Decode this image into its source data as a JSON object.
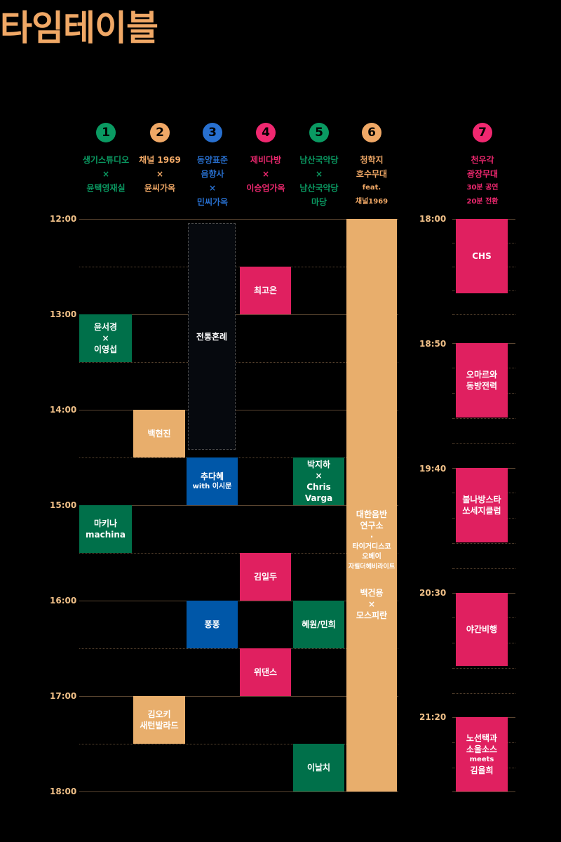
{
  "title": "타임테이블",
  "colors": {
    "green": "#00704a",
    "orange": "#e8ae6c",
    "blue": "#0057a8",
    "pink": "#e02060",
    "title": "#f0a866"
  },
  "venues": [
    {
      "num": "1",
      "lines": [
        "생기스튜디오",
        "×",
        "윤택영재실"
      ],
      "color": "#0a9a62"
    },
    {
      "num": "2",
      "lines": [
        "채널 1969",
        "×",
        "윤씨가옥"
      ],
      "color": "#f0a866"
    },
    {
      "num": "3",
      "lines": [
        "동양표준",
        "음향사",
        "×",
        "민씨가옥"
      ],
      "color": "#2870d0"
    },
    {
      "num": "4",
      "lines": [
        "제비다방",
        "×",
        "이승업가옥"
      ],
      "color": "#f02870"
    },
    {
      "num": "5",
      "lines": [
        "남산국악당",
        "×",
        "남산국악당",
        "마당"
      ],
      "color": "#0a9a62"
    },
    {
      "num": "6",
      "lines": [
        "청학지",
        "호수무대",
        "feat.",
        "채널1969"
      ],
      "color": "#f0a866"
    },
    {
      "num": "7",
      "lines": [
        "천우각",
        "광장무대",
        "30분 공연",
        "20분 전환"
      ],
      "color": "#f02870"
    }
  ],
  "times_left": [
    "12:00",
    "13:00",
    "14:00",
    "15:00",
    "16:00",
    "17:00",
    "18:00"
  ],
  "times_right": [
    "18:00",
    "18:50",
    "19:40",
    "20:30",
    "21:20"
  ],
  "blocks": {
    "v1_1": [
      "윤서경",
      "×",
      "이영섭"
    ],
    "v1_2": [
      "마키나",
      "machina"
    ],
    "v2_1": [
      "백현진"
    ],
    "v2_2": [
      "김오키",
      "새턴발라드"
    ],
    "v3_1": [
      "전통혼례"
    ],
    "v3_2": [
      "추다혜",
      "with 이시문"
    ],
    "v3_3": [
      "퐁퐁"
    ],
    "v4_1": [
      "최고은"
    ],
    "v4_2": [
      "김일두"
    ],
    "v4_3": [
      "위댄스"
    ],
    "v5_1": [
      "박지하",
      "×",
      "Chris Varga"
    ],
    "v5_2": [
      "혜원/민희"
    ],
    "v5_3": [
      "이날치"
    ],
    "v6": [
      "대한음반",
      "연구소",
      "·",
      "타이거디스코",
      "오베이",
      "자릴더헤비라이트",
      "백건용",
      "×",
      "모스피란"
    ],
    "v7_1": [
      "CHS"
    ],
    "v7_2": [
      "오마르와",
      "동방전력"
    ],
    "v7_3": [
      "불나방스타",
      "쏘세지클럽"
    ],
    "v7_4": [
      "야간비행"
    ],
    "v7_5": [
      "노선택과",
      "소울소스",
      "meets",
      "김율희"
    ]
  }
}
